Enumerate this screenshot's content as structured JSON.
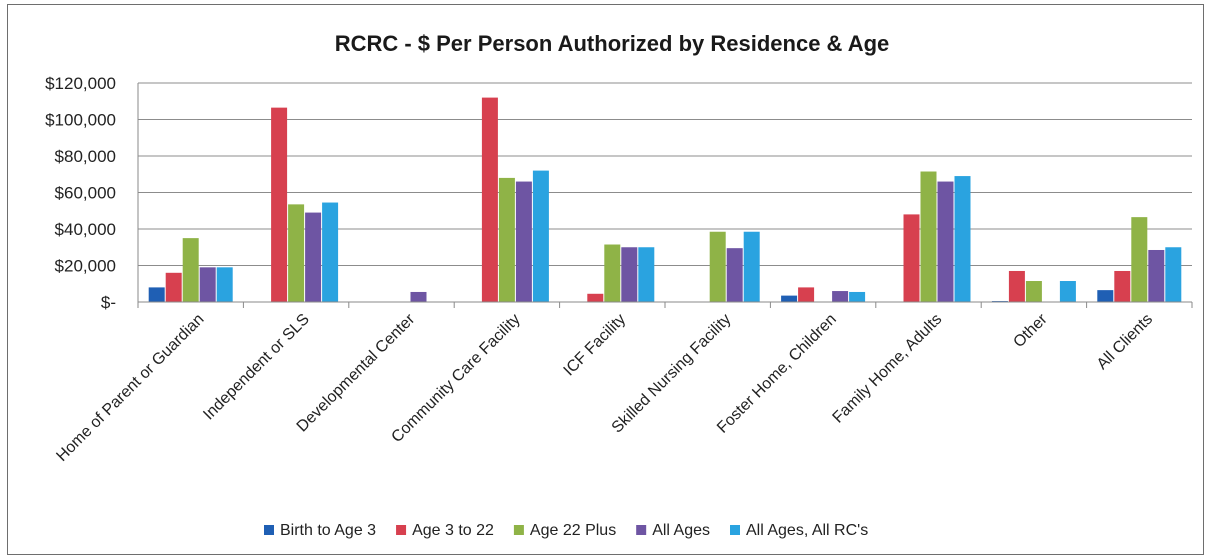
{
  "chart_data": {
    "type": "bar",
    "title": "RCRC - $ Per Person Authorized by Residence & Age",
    "xlabel": "",
    "ylabel": "",
    "ylim": [
      0,
      120000
    ],
    "yticks": [
      0,
      20000,
      40000,
      60000,
      80000,
      100000,
      120000
    ],
    "ytick_labels": [
      "$-",
      "$20,000",
      "$40,000",
      "$60,000",
      "$80,000",
      "$100,000",
      "$120,000"
    ],
    "grid": true,
    "legend_position": "bottom",
    "categories": [
      "Home of Parent or Guardian",
      "Independent or SLS",
      "Developmental Center",
      "Community Care Facility",
      "ICF Facility",
      "Skilled Nursing Facility",
      "Foster Home, Children",
      "Family Home, Adults",
      "Other",
      "All Clients"
    ],
    "series": [
      {
        "name": "Birth to Age 3",
        "color": "#1f5fb4",
        "values": [
          8000,
          0,
          0,
          0,
          0,
          0,
          3500,
          0,
          500,
          6500
        ]
      },
      {
        "name": "Age 3 to 22",
        "color": "#d7404f",
        "values": [
          16000,
          106500,
          0,
          112000,
          4500,
          0,
          8000,
          48000,
          17000,
          17000
        ]
      },
      {
        "name": "Age 22 Plus",
        "color": "#8fb347",
        "values": [
          35000,
          53500,
          0,
          68000,
          31500,
          38500,
          0,
          71500,
          11500,
          46500
        ]
      },
      {
        "name": "All Ages",
        "color": "#6e55a3",
        "values": [
          19000,
          49000,
          5500,
          66000,
          30000,
          29500,
          6000,
          66000,
          0,
          28500
        ]
      },
      {
        "name": "All Ages, All RC's",
        "color": "#2aa3e0",
        "values": [
          19000,
          54500,
          0,
          72000,
          30000,
          38500,
          5500,
          69000,
          11500,
          30000
        ]
      }
    ]
  }
}
